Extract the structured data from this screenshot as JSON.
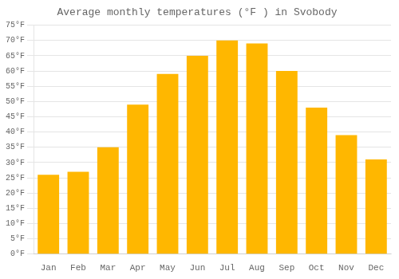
{
  "chart_data": {
    "type": "bar",
    "title": "Average monthly temperatures (°F ) in Svobody",
    "categories": [
      "Jan",
      "Feb",
      "Mar",
      "Apr",
      "May",
      "Jun",
      "Jul",
      "Aug",
      "Sep",
      "Oct",
      "Nov",
      "Dec"
    ],
    "values": [
      26,
      27,
      35,
      49,
      59,
      65,
      70,
      69,
      60,
      48,
      39,
      31
    ],
    "color": "#FFB700",
    "ylim": [
      0,
      75
    ],
    "yticks": [
      {
        "value": 0,
        "label": "0°F"
      },
      {
        "value": 5,
        "label": "5°F"
      },
      {
        "value": 10,
        "label": "10°F"
      },
      {
        "value": 15,
        "label": "15°F"
      },
      {
        "value": 20,
        "label": "20°F"
      },
      {
        "value": 25,
        "label": "25°F"
      },
      {
        "value": 30,
        "label": "30°F"
      },
      {
        "value": 35,
        "label": "35°F"
      },
      {
        "value": 40,
        "label": "40°F"
      },
      {
        "value": 45,
        "label": "45°F"
      },
      {
        "value": 50,
        "label": "50°F"
      },
      {
        "value": 55,
        "label": "55°F"
      },
      {
        "value": 60,
        "label": "60°F"
      },
      {
        "value": 65,
        "label": "65°F"
      },
      {
        "value": 70,
        "label": "70°F"
      },
      {
        "value": 75,
        "label": "75°F"
      }
    ],
    "grid": true
  }
}
